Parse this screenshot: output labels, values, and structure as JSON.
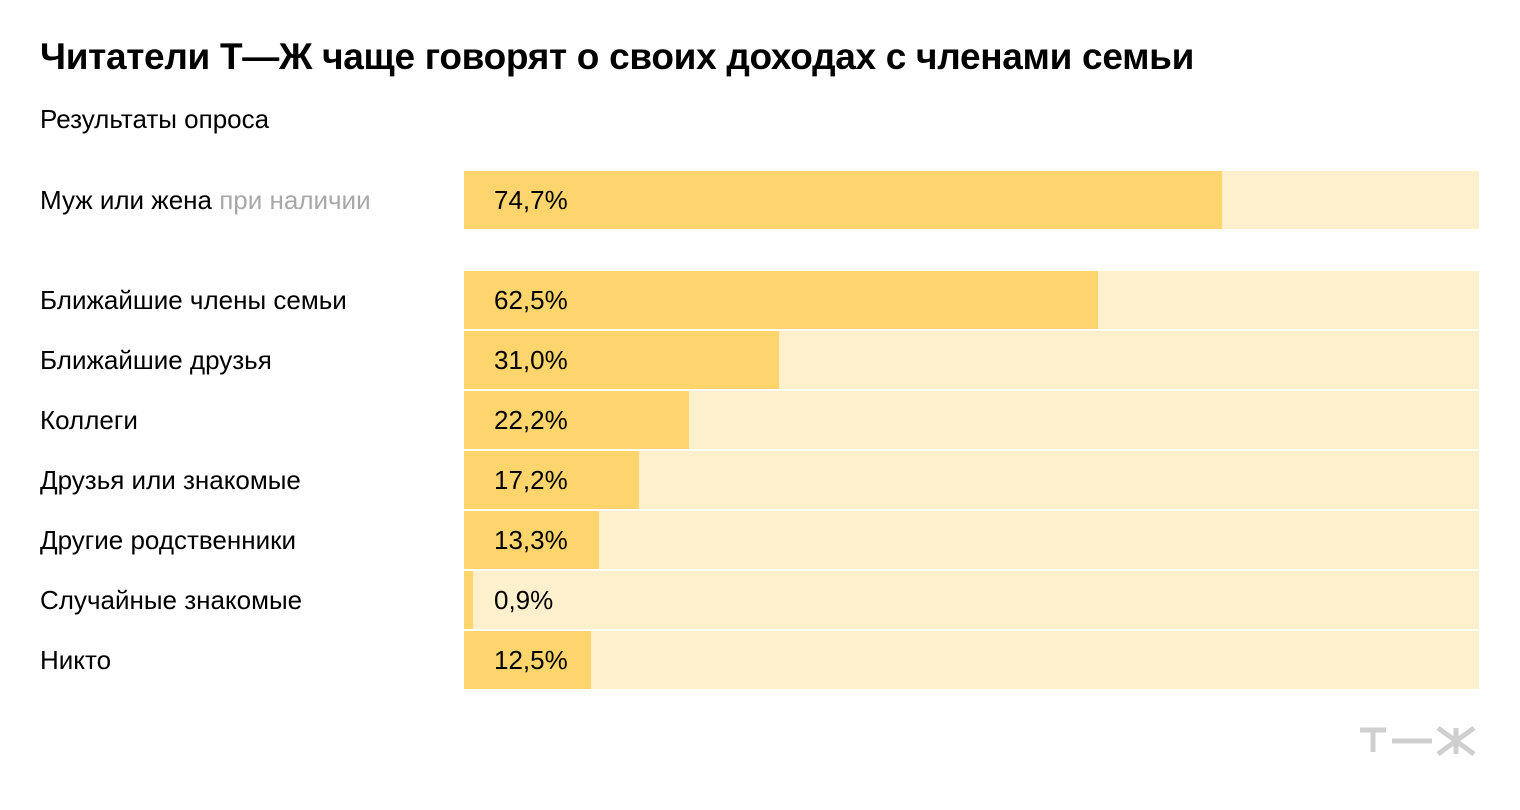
{
  "header": {
    "title": "Читатели Т—Ж чаще говорят о своих доходах с членами семьи",
    "subtitle": "Результаты опроса"
  },
  "colors": {
    "bar": "#fed46c",
    "track": "#fef0cc",
    "muted_text": "#a8a8a8",
    "logo": "#cfcfcf"
  },
  "logo": {
    "text": "Т—Ж",
    "icon": "tzh-logo-icon"
  },
  "chart_data": {
    "type": "bar",
    "orientation": "horizontal",
    "xlim": [
      0,
      100
    ],
    "grid": false,
    "legend": "none",
    "title": "Читатели Т—Ж чаще говорят о своих доходах с членами семьи",
    "subtitle": "Результаты опроса",
    "categories": [
      "Муж или жена",
      "Ближайшие члены семьи",
      "Ближайшие друзья",
      "Коллеги",
      "Друзья или знакомые",
      "Другие родственники",
      "Случайные знакомые",
      "Никто"
    ],
    "category_notes": [
      "при наличии",
      "",
      "",
      "",
      "",
      "",
      "",
      ""
    ],
    "values": [
      74.7,
      62.5,
      31.0,
      22.2,
      17.2,
      13.3,
      0.9,
      12.5
    ],
    "value_labels": [
      "74,7%",
      "62,5%",
      "31,0%",
      "22,2%",
      "17,2%",
      "13,3%",
      "0,9%",
      "12,5%"
    ]
  }
}
